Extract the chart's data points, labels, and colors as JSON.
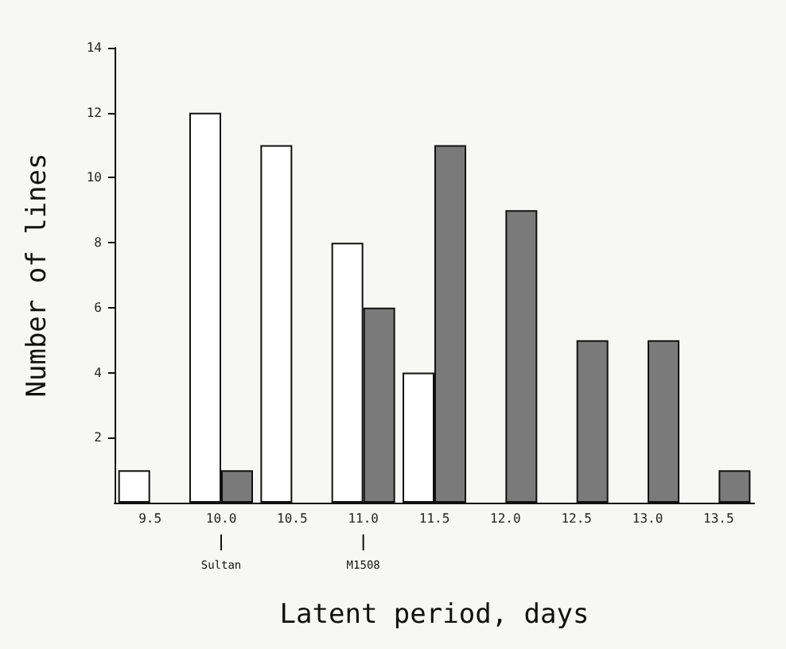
{
  "chart_data": {
    "type": "bar",
    "xlabel": "Latent period, days",
    "ylabel": "Number of lines",
    "categories": [
      "9.5",
      "10.0",
      "10.5",
      "11.0",
      "11.5",
      "12.0",
      "12.5",
      "13.0",
      "13.5"
    ],
    "series": [
      {
        "color": "#ffffff",
        "values": [
          1,
          12,
          11,
          8,
          4,
          null,
          null,
          null,
          null
        ]
      },
      {
        "color": "#7a7a7a",
        "values": [
          null,
          1,
          null,
          6,
          11,
          9,
          5,
          5,
          1
        ]
      }
    ],
    "ylim": [
      0,
      14
    ],
    "yticks": [
      2,
      4,
      6,
      8,
      10,
      12,
      14
    ],
    "grid": false,
    "annotations": [
      "Sultan",
      "M1508"
    ]
  }
}
